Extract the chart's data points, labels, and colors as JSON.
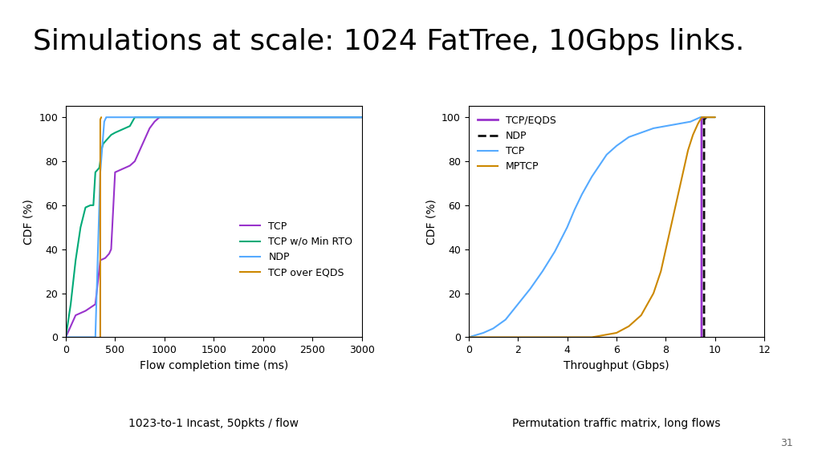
{
  "title": "Simulations at scale: 1024 FatTree, 10Gbps links.",
  "title_fontsize": 26,
  "title_fontweight": "normal",
  "page_number": "31",
  "background_color": "#ffffff",
  "left_plot": {
    "xlabel": "Flow completion time (ms)",
    "ylabel": "CDF (%)",
    "caption": "1023-to-1 Incast, 50pkts / flow",
    "xlim": [
      0,
      3000
    ],
    "ylim": [
      0,
      105
    ],
    "xticks": [
      0,
      500,
      1000,
      1500,
      2000,
      2500,
      3000
    ],
    "yticks": [
      0,
      20,
      40,
      60,
      80,
      100
    ],
    "series": {
      "TCP": {
        "color": "#9933CC",
        "x": [
          0,
          50,
          100,
          200,
          300,
          350,
          400,
          420,
          440,
          460,
          500,
          550,
          600,
          650,
          700,
          750,
          800,
          850,
          900,
          950,
          1000,
          1050,
          1100,
          1300,
          1500,
          2000,
          3000
        ],
        "y": [
          0,
          5,
          10,
          12,
          15,
          35,
          36,
          37,
          38,
          40,
          75,
          76,
          77,
          78,
          80,
          85,
          90,
          95,
          98,
          100,
          100,
          100,
          100,
          100,
          100,
          100,
          100
        ]
      },
      "TCP w/o Min RTO": {
        "color": "#00AA77",
        "x": [
          0,
          50,
          100,
          150,
          200,
          250,
          280,
          300,
          320,
          340,
          350,
          360,
          380,
          400,
          420,
          440,
          460,
          500,
          550,
          600,
          650,
          700,
          800,
          900,
          1000,
          1100,
          1200,
          2500,
          3000
        ],
        "y": [
          0,
          15,
          35,
          50,
          59,
          60,
          60,
          75,
          76,
          77,
          80,
          85,
          88,
          89,
          90,
          91,
          92,
          93,
          94,
          95,
          96,
          100,
          100,
          100,
          100,
          100,
          100,
          100,
          100
        ]
      },
      "NDP": {
        "color": "#55AAFF",
        "x": [
          0,
          50,
          100,
          150,
          200,
          250,
          300,
          350,
          390,
          400,
          410,
          420,
          2500,
          3000
        ],
        "y": [
          0,
          0,
          0,
          0,
          0,
          0,
          0,
          75,
          98,
          99,
          100,
          100,
          100,
          100
        ]
      },
      "TCP over EQDS": {
        "color": "#CC8800",
        "x": [
          350,
          350,
          360
        ],
        "y": [
          0,
          99,
          100
        ]
      }
    },
    "legend_order": [
      "TCP",
      "TCP w/o Min RTO",
      "NDP",
      "TCP over EQDS"
    ],
    "legend_loc": "lower right"
  },
  "right_plot": {
    "xlabel": "Throughput (Gbps)",
    "ylabel": "CDF (%)",
    "caption": "Permutation traffic matrix, long flows",
    "xlim": [
      0,
      12
    ],
    "ylim": [
      0,
      105
    ],
    "xticks": [
      0,
      2,
      4,
      6,
      8,
      10,
      12
    ],
    "yticks": [
      0,
      20,
      40,
      60,
      80,
      100
    ],
    "series": {
      "TCP/EQDS": {
        "color": "#9933CC",
        "linestyle": "solid",
        "linewidth": 2.0,
        "x": [
          9.45,
          9.45,
          9.55,
          9.55
        ],
        "y": [
          0,
          99,
          100,
          100
        ]
      },
      "NDP": {
        "color": "#111111",
        "linestyle": "dashed",
        "linewidth": 2.0,
        "x": [
          9.55,
          9.55,
          9.65,
          9.65
        ],
        "y": [
          0,
          99,
          100,
          100
        ]
      },
      "TCP": {
        "color": "#55AAFF",
        "linestyle": "solid",
        "linewidth": 1.5,
        "x": [
          0.0,
          0.3,
          0.6,
          1.0,
          1.5,
          2.0,
          2.5,
          3.0,
          3.5,
          4.0,
          4.3,
          4.6,
          5.0,
          5.3,
          5.6,
          6.0,
          6.5,
          7.0,
          7.5,
          8.0,
          8.5,
          9.0,
          9.2,
          9.4,
          9.5,
          9.6,
          10.0
        ],
        "y": [
          0,
          1,
          2,
          4,
          8,
          15,
          22,
          30,
          39,
          50,
          58,
          65,
          73,
          78,
          83,
          87,
          91,
          93,
          95,
          96,
          97,
          98,
          99,
          100,
          100,
          100,
          100
        ]
      },
      "MPTCP": {
        "color": "#CC8800",
        "linestyle": "solid",
        "linewidth": 1.5,
        "x": [
          0.0,
          4.0,
          5.0,
          5.5,
          6.0,
          6.5,
          7.0,
          7.5,
          7.8,
          8.0,
          8.3,
          8.6,
          8.9,
          9.1,
          9.3,
          9.45,
          9.55,
          10.0
        ],
        "y": [
          0,
          0,
          0,
          1,
          2,
          5,
          10,
          20,
          30,
          40,
          55,
          70,
          85,
          92,
          97,
          100,
          100,
          100
        ]
      }
    },
    "legend_order": [
      "TCP/EQDS",
      "NDP",
      "TCP",
      "MPTCP"
    ],
    "legend_loc": "upper left"
  }
}
